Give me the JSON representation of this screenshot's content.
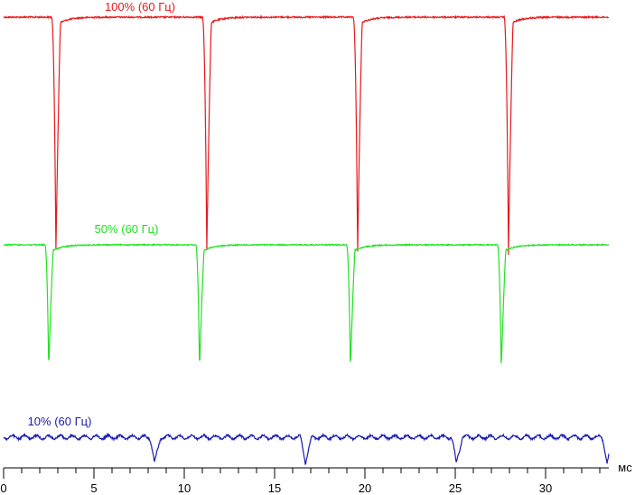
{
  "chart_data": {
    "type": "line",
    "xlabel": "мс",
    "xlim": [
      0,
      33.5
    ],
    "x_ticks": [
      0,
      5,
      10,
      15,
      20,
      25,
      30
    ],
    "x_tick_labels": [
      "0",
      "5",
      "10",
      "15",
      "20",
      "25",
      "30"
    ],
    "grid": false,
    "legend": "labels above each trace",
    "series": [
      {
        "name": "100% (60 Гц)",
        "color": "#e8191b",
        "period_ms": 8.35,
        "dip_times_ms": [
          2.9,
          11.25,
          19.6,
          27.95
        ],
        "high_level": 1.0,
        "dip_level": 0.0
      },
      {
        "name": "50% (60 Гц)",
        "color": "#21e121",
        "period_ms": 8.35,
        "dip_times_ms": [
          2.5,
          10.85,
          19.2,
          27.55
        ],
        "high_level": 1.0,
        "dip_level": 0.0
      },
      {
        "name": "10% (60 Гц)",
        "color": "#1a1ab0",
        "period_ms": 8.35,
        "dip_times_ms": [
          8.35,
          16.7,
          25.05,
          33.4
        ],
        "high_level": 1.0,
        "dip_level": 0.0
      }
    ]
  }
}
